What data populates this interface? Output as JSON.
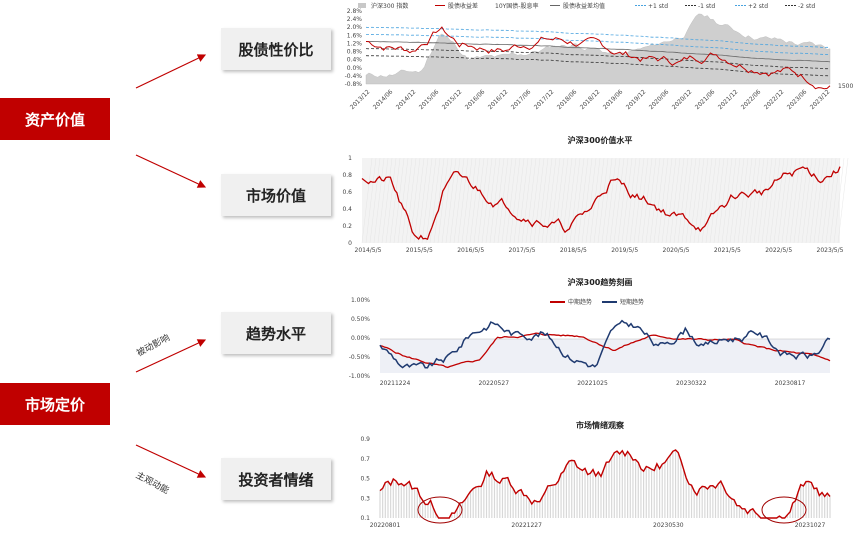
{
  "left_labels": {
    "asset_value": "资产价值",
    "market_pricing": "市场定价"
  },
  "boxes": {
    "equity_bond": "股债性价比",
    "market_value": "市场价值",
    "trend_level": "趋势水平",
    "sentiment": "投资者情绪"
  },
  "arrow_labels": {
    "passive": "被动影响",
    "active": "主观动能"
  },
  "charts": [
    {
      "id": "equity-bond",
      "title": "",
      "legend": [
        "沪深300 指数",
        "股债收益差",
        "10Y国债-股息率",
        "股债收益差均值",
        "+1 std",
        "-1 std",
        "+2 std",
        "-2 std"
      ],
      "y_ticks": [
        "2.8%",
        "2.4%",
        "2.0%",
        "1.6%",
        "1.2%",
        "0.8%",
        "0.4%",
        "0.0%",
        "-0.4%",
        "-0.8%"
      ],
      "x_ticks": [
        "2013/12",
        "2014/06",
        "2014/12",
        "2015/06",
        "2015/12",
        "2016/06",
        "2016/12",
        "2017/06",
        "2017/12",
        "2018/06",
        "2018/12",
        "2019/06",
        "2019/12",
        "2020/06",
        "2020/12",
        "2021/06",
        "2021/12",
        "2022/06",
        "2022/12",
        "2023/06",
        "2023/12"
      ],
      "right_tick": "1500",
      "colors": {
        "index_area": "#c8c8c8",
        "spread": "#c00000",
        "mean": "#555555",
        "plus_std": "#4aa3df",
        "minus_std": "#333333"
      }
    },
    {
      "id": "market-value",
      "title": "沪深300价值水平",
      "y_ticks": [
        "1",
        "0.8",
        "0.6",
        "0.4",
        "0.2",
        "0"
      ],
      "x_ticks": [
        "2014/5/5",
        "2015/5/5",
        "2016/5/5",
        "2017/5/5",
        "2018/5/5",
        "2019/5/5",
        "2020/5/5",
        "2021/5/5",
        "2022/5/5",
        "2023/5/5"
      ],
      "line_color": "#c00000"
    },
    {
      "id": "trend",
      "title": "沪深300趋势刻画",
      "legend": [
        "中期趋势",
        "短期趋势"
      ],
      "y_ticks": [
        "1.00%",
        "0.50%",
        "0.00%",
        "-0.50%",
        "-1.00%"
      ],
      "x_ticks": [
        "20211224",
        "20220527",
        "20221025",
        "20230322",
        "20230817"
      ],
      "colors": {
        "medium": "#c00000",
        "short": "#1f3a70"
      }
    },
    {
      "id": "sentiment",
      "title": "市场情绪观察",
      "y_ticks": [
        "0.9",
        "0.7",
        "0.5",
        "0.3",
        "0.1"
      ],
      "x_ticks": [
        "20220801",
        "20221227",
        "20230530",
        "20231027"
      ],
      "line_color": "#c00000"
    }
  ]
}
